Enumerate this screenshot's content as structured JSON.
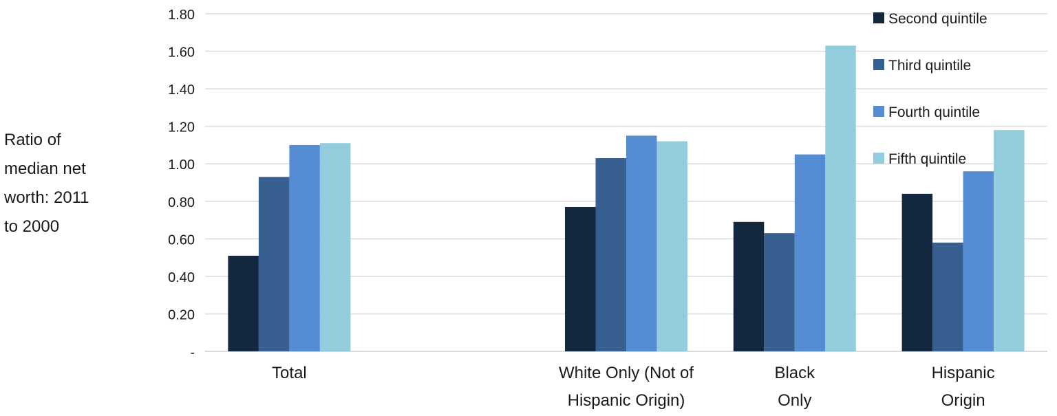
{
  "chart_data": {
    "type": "bar",
    "ylabel_lines": [
      "Ratio of",
      "median net",
      "worth: 2011",
      "to 2000"
    ],
    "ylim": [
      0,
      1.8
    ],
    "yticks": [
      {
        "value": 0,
        "label": "-"
      },
      {
        "value": 0.2,
        "label": "0.20"
      },
      {
        "value": 0.4,
        "label": "0.40"
      },
      {
        "value": 0.6,
        "label": "0.60"
      },
      {
        "value": 0.8,
        "label": "0.80"
      },
      {
        "value": 1.0,
        "label": "1.00"
      },
      {
        "value": 1.2,
        "label": "1.20"
      },
      {
        "value": 1.4,
        "label": "1.40"
      },
      {
        "value": 1.6,
        "label": "1.60"
      },
      {
        "value": 1.8,
        "label": "1.80"
      }
    ],
    "grid": true,
    "legend_position": "top-right",
    "categories": [
      {
        "label_lines": [
          "Total"
        ]
      },
      {
        "label_lines": [
          ""
        ]
      },
      {
        "label_lines": [
          "White Only (Not of",
          "Hispanic Origin)"
        ]
      },
      {
        "label_lines": [
          "Black",
          "Only"
        ]
      },
      {
        "label_lines": [
          "Hispanic",
          "Origin"
        ]
      }
    ],
    "series": [
      {
        "name": "Second quintile",
        "color": "#13273f",
        "values": [
          0.51,
          null,
          0.77,
          0.69,
          0.84
        ]
      },
      {
        "name": "Third quintile",
        "color": "#375f8f",
        "values": [
          0.93,
          null,
          1.03,
          0.63,
          0.58
        ]
      },
      {
        "name": "Fourth quintile",
        "color": "#548dd4",
        "values": [
          1.1,
          null,
          1.15,
          1.05,
          0.96
        ]
      },
      {
        "name": "Fifth quintile",
        "color": "#93cddd",
        "values": [
          1.11,
          null,
          1.12,
          1.63,
          1.18
        ]
      }
    ]
  }
}
